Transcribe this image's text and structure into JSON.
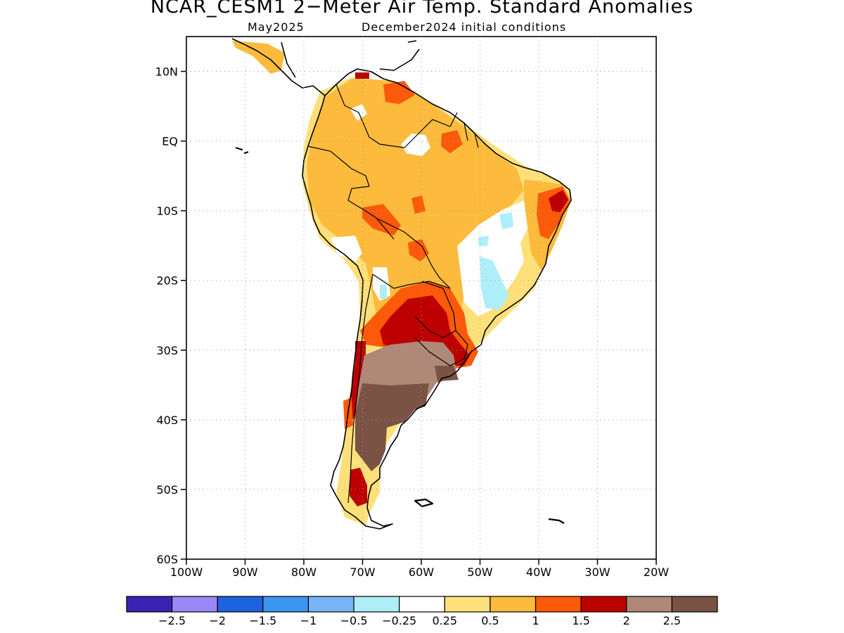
{
  "title": "NCAR_CESM1 2−Meter Air Temp. Standard Anomalies",
  "subtitle_left": "May2025",
  "subtitle_right": "December2024 initial conditions",
  "map": {
    "lon_range": [
      -100,
      -20
    ],
    "lat_range": [
      -60,
      15
    ],
    "lat_ticks": [
      {
        "v": 10,
        "label": "10N"
      },
      {
        "v": 0,
        "label": "EQ"
      },
      {
        "v": -10,
        "label": "10S"
      },
      {
        "v": -20,
        "label": "20S"
      },
      {
        "v": -30,
        "label": "30S"
      },
      {
        "v": -40,
        "label": "40S"
      },
      {
        "v": -50,
        "label": "50S"
      },
      {
        "v": -60,
        "label": "60S"
      }
    ],
    "lon_ticks": [
      {
        "v": -100,
        "label": "100W"
      },
      {
        "v": -90,
        "label": "90W"
      },
      {
        "v": -80,
        "label": "80W"
      },
      {
        "v": -70,
        "label": "70W"
      },
      {
        "v": -60,
        "label": "60W"
      },
      {
        "v": -50,
        "label": "50W"
      },
      {
        "v": -40,
        "label": "40W"
      },
      {
        "v": -30,
        "label": "30W"
      },
      {
        "v": -20,
        "label": "20W"
      }
    ],
    "grid": "dotted"
  },
  "colorbar": {
    "colors": [
      "#3a23b4",
      "#9b87f5",
      "#1f62e0",
      "#3a96f0",
      "#78b4f8",
      "#aeeef8",
      "#ffffff",
      "#fde07a",
      "#fcbb3c",
      "#fb5a0a",
      "#bd0000",
      "#b08878",
      "#7a5344"
    ],
    "labels": [
      "−2.5",
      "−2",
      "−1.5",
      "−1",
      "−0.5",
      "−0.25",
      "0.25",
      "0.5",
      "1",
      "1.5",
      "2",
      "2.5"
    ]
  }
}
